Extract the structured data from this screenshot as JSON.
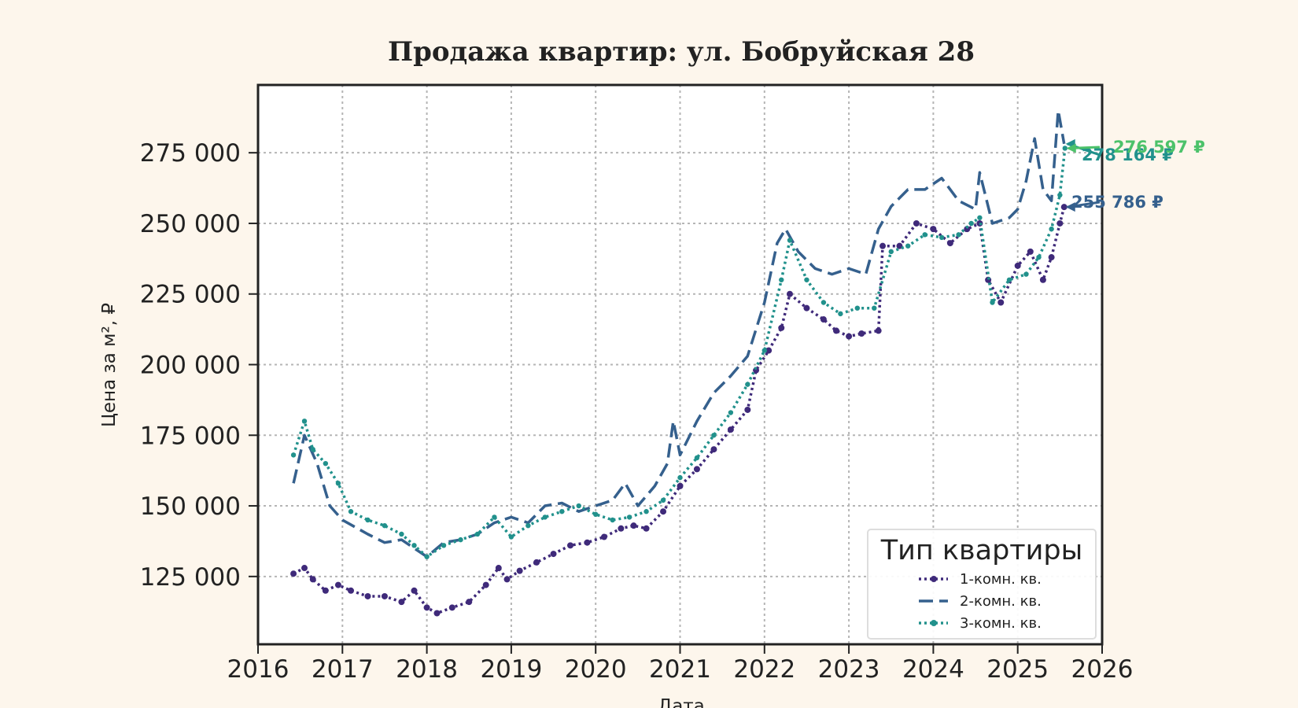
{
  "chart_data": {
    "type": "line",
    "title": "Продажа квартир: ул. Бобруйская 28",
    "xlabel": "Дата",
    "ylabel": "Цена за м², ₽",
    "xlim": [
      2016,
      2026
    ],
    "ylim": [
      101000,
      299000
    ],
    "x_ticks": [
      2016,
      2017,
      2018,
      2019,
      2020,
      2021,
      2022,
      2023,
      2024,
      2025,
      2026
    ],
    "x_tick_labels": [
      "2016",
      "2017",
      "2018",
      "2019",
      "2020",
      "2021",
      "2022",
      "2023",
      "2024",
      "2025",
      "2026"
    ],
    "y_ticks": [
      125000,
      150000,
      175000,
      200000,
      225000,
      250000,
      275000
    ],
    "y_tick_labels": [
      "125 000",
      "150 000",
      "175 000",
      "200 000",
      "225 000",
      "250 000",
      "275 000"
    ],
    "grid": true,
    "legend": {
      "title": "Тип квартиры",
      "position": "lower-right",
      "entries": [
        "1-комн. кв.",
        "2-комн. кв.",
        "3-комн. кв."
      ]
    },
    "series": [
      {
        "name": "1-комн. кв.",
        "color": "#3f2a7a",
        "style": "dotted-circle",
        "x": [
          2016.42,
          2016.55,
          2016.65,
          2016.8,
          2016.95,
          2017.1,
          2017.3,
          2017.5,
          2017.7,
          2017.85,
          2018.0,
          2018.12,
          2018.3,
          2018.5,
          2018.7,
          2018.85,
          2018.95,
          2019.1,
          2019.3,
          2019.5,
          2019.7,
          2019.9,
          2020.1,
          2020.3,
          2020.45,
          2020.6,
          2020.8,
          2021.0,
          2021.2,
          2021.4,
          2021.6,
          2021.8,
          2021.9,
          2022.05,
          2022.2,
          2022.3,
          2022.5,
          2022.7,
          2022.85,
          2023.0,
          2023.15,
          2023.35,
          2023.4,
          2023.6,
          2023.8,
          2024.0,
          2024.2,
          2024.4,
          2024.55,
          2024.65,
          2024.8,
          2025.0,
          2025.15,
          2025.3,
          2025.4,
          2025.5,
          2025.55
        ],
        "y": [
          126000,
          128000,
          124000,
          120000,
          122000,
          120000,
          118000,
          118000,
          116000,
          120000,
          114000,
          112000,
          114000,
          116000,
          122000,
          128000,
          124000,
          127000,
          130000,
          133000,
          136000,
          137000,
          139000,
          142000,
          143000,
          142000,
          148000,
          157000,
          163000,
          170000,
          177000,
          184000,
          198000,
          205000,
          213000,
          225000,
          220000,
          216000,
          212000,
          210000,
          211000,
          212000,
          242000,
          242000,
          250000,
          248000,
          243000,
          248000,
          250000,
          230000,
          222000,
          235000,
          240000,
          230000,
          238000,
          250000,
          255786
        ],
        "end_label": "255 786 ₽"
      },
      {
        "name": "2-комн. кв.",
        "color": "#35608d",
        "style": "dashed",
        "x": [
          2016.42,
          2016.55,
          2016.7,
          2016.85,
          2017.0,
          2017.3,
          2017.5,
          2017.7,
          2017.85,
          2018.0,
          2018.2,
          2018.4,
          2018.6,
          2018.8,
          2019.0,
          2019.2,
          2019.4,
          2019.6,
          2019.8,
          2020.0,
          2020.2,
          2020.35,
          2020.5,
          2020.7,
          2020.85,
          2020.92,
          2021.0,
          2021.2,
          2021.4,
          2021.6,
          2021.8,
          2022.0,
          2022.15,
          2022.25,
          2022.4,
          2022.6,
          2022.8,
          2023.0,
          2023.2,
          2023.35,
          2023.5,
          2023.7,
          2023.9,
          2024.1,
          2024.3,
          2024.5,
          2024.55,
          2024.7,
          2024.9,
          2025.0,
          2025.1,
          2025.2,
          2025.3,
          2025.4,
          2025.48,
          2025.55
        ],
        "y": [
          158000,
          175000,
          165000,
          150000,
          145000,
          140000,
          137000,
          138000,
          135000,
          132000,
          137000,
          138000,
          140000,
          144000,
          146000,
          144000,
          150000,
          151000,
          148000,
          150000,
          152000,
          158000,
          150000,
          157000,
          165000,
          180000,
          168000,
          180000,
          190000,
          196000,
          203000,
          222000,
          243000,
          248000,
          240000,
          234000,
          232000,
          234000,
          232000,
          248000,
          256000,
          262000,
          262000,
          266000,
          258000,
          255000,
          268000,
          250000,
          252000,
          255000,
          265000,
          280000,
          262000,
          258000,
          290000,
          278164
        ],
        "end_label": "278 164 ₽"
      },
      {
        "name": "3-комн. кв.",
        "color": "#21918c",
        "style": "dotted-star",
        "x": [
          2016.42,
          2016.55,
          2016.65,
          2016.8,
          2016.95,
          2017.1,
          2017.3,
          2017.5,
          2017.7,
          2017.85,
          2018.0,
          2018.2,
          2018.4,
          2018.6,
          2018.8,
          2019.0,
          2019.2,
          2019.4,
          2019.6,
          2019.8,
          2020.0,
          2020.2,
          2020.4,
          2020.6,
          2020.8,
          2021.0,
          2021.2,
          2021.4,
          2021.6,
          2021.8,
          2022.0,
          2022.2,
          2022.3,
          2022.5,
          2022.7,
          2022.9,
          2023.1,
          2023.3,
          2023.5,
          2023.7,
          2023.9,
          2024.1,
          2024.3,
          2024.45,
          2024.55,
          2024.7,
          2024.9,
          2025.1,
          2025.25,
          2025.4,
          2025.5,
          2025.56
        ],
        "y": [
          168000,
          180000,
          170000,
          165000,
          158000,
          148000,
          145000,
          143000,
          140000,
          136000,
          132000,
          136000,
          138000,
          140000,
          146000,
          139000,
          143000,
          146000,
          148000,
          150000,
          147000,
          145000,
          146000,
          148000,
          152000,
          160000,
          167000,
          175000,
          183000,
          193000,
          205000,
          230000,
          244000,
          230000,
          222000,
          218000,
          220000,
          220000,
          240000,
          242000,
          246000,
          245000,
          246000,
          250000,
          252000,
          222000,
          230000,
          232000,
          238000,
          248000,
          260000,
          276597
        ],
        "end_label": "276 597 ₽"
      }
    ]
  },
  "colors": {
    "background": "#fdf6ec",
    "series_1": "#3f2a7a",
    "series_2": "#35608d",
    "series_3": "#21918c",
    "label_3": "#4cc26a"
  }
}
